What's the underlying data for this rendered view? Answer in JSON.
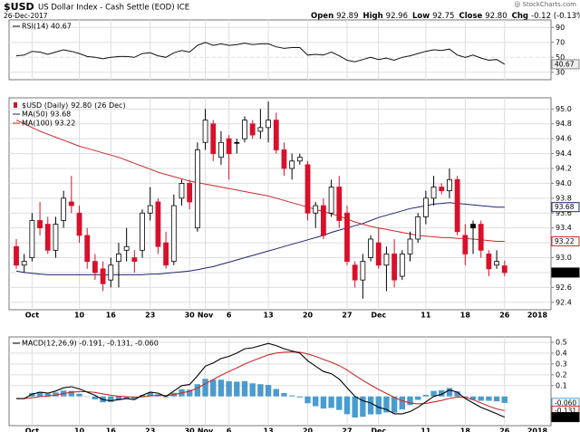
{
  "header": {
    "symbol": "$USD",
    "name": "US Dollar Index - Cash Settle (EOD) ICE",
    "date": "26-Dec-2017",
    "quote": [
      {
        "label": "Open",
        "value": "92.89"
      },
      {
        "label": "High",
        "value": "92.96"
      },
      {
        "label": "Low",
        "value": "92.75"
      },
      {
        "label": "Close",
        "value": "92.80"
      },
      {
        "label": "Chg",
        "value": "-0.12 (-0.13%)"
      }
    ],
    "credit": "@ StockCharts.com"
  },
  "chart_data": [
    {
      "type": "line",
      "ylim": [
        20,
        100
      ],
      "yticks": [
        30,
        50,
        70,
        90
      ],
      "grid": true,
      "series": [
        {
          "name": "RSI(14) 40.67",
          "color": "#111111",
          "values": [
            52,
            53,
            58,
            57,
            54,
            57,
            60,
            58,
            55,
            51,
            50,
            48,
            50,
            51,
            51,
            50,
            55,
            56,
            52,
            50,
            56,
            59,
            57,
            66,
            70,
            66,
            68,
            66,
            67,
            69,
            67,
            68,
            68,
            64,
            62,
            63,
            63,
            53,
            54,
            53,
            57,
            52,
            46,
            44,
            47,
            50,
            47,
            49,
            46,
            50,
            52,
            55,
            58,
            60,
            59,
            61,
            53,
            50,
            53,
            49,
            46,
            47,
            40.67
          ]
        }
      ]
    },
    {
      "type": "candlestick",
      "title": "$USD (Daily)",
      "close_label": "92.80",
      "last_date": "(26 Dec)",
      "categories": [
        null,
        null,
        "Oct",
        null,
        null,
        null,
        null,
        null,
        "10",
        null,
        null,
        null,
        "16",
        null,
        null,
        null,
        null,
        "23",
        null,
        null,
        null,
        null,
        "30",
        null,
        "Nov",
        null,
        null,
        "6",
        null,
        null,
        null,
        null,
        "13",
        null,
        null,
        null,
        null,
        "20",
        null,
        null,
        null,
        null,
        "27",
        null,
        null,
        null,
        "Dec",
        null,
        null,
        null,
        null,
        null,
        "11",
        null,
        null,
        null,
        null,
        "18",
        null,
        null,
        null,
        null,
        "26"
      ],
      "x_end_label": "2018",
      "open": [
        93.15,
        92.9,
        93.0,
        93.5,
        93.45,
        93.1,
        93.5,
        93.75,
        93.6,
        93.3,
        92.95,
        92.85,
        92.7,
        92.95,
        93.1,
        93.0,
        93.1,
        93.6,
        93.75,
        93.2,
        92.95,
        93.8,
        94.0,
        93.4,
        94.55,
        94.8,
        94.35,
        94.6,
        94.55,
        94.6,
        94.8,
        94.7,
        94.75,
        94.85,
        94.45,
        94.2,
        94.3,
        94.25,
        93.6,
        93.7,
        93.6,
        93.95,
        93.6,
        92.9,
        92.7,
        93.0,
        93.2,
        92.9,
        93.05,
        92.75,
        93.05,
        93.25,
        93.55,
        93.8,
        93.95,
        93.9,
        94.05,
        93.3,
        93.45,
        93.45,
        93.05,
        92.9,
        92.89
      ],
      "high": [
        93.25,
        93.05,
        93.6,
        93.75,
        93.55,
        93.55,
        93.9,
        94.1,
        93.7,
        93.4,
        93.05,
        92.95,
        93.0,
        93.2,
        93.4,
        93.1,
        93.65,
        93.95,
        93.8,
        93.35,
        93.85,
        94.05,
        94.05,
        94.55,
        95.0,
        94.85,
        94.7,
        94.65,
        94.6,
        94.9,
        94.85,
        95.0,
        95.1,
        94.95,
        94.55,
        94.4,
        94.4,
        94.3,
        93.75,
        93.8,
        94.05,
        94.1,
        93.7,
        92.95,
        93.05,
        93.3,
        93.4,
        93.15,
        93.25,
        93.1,
        93.35,
        93.6,
        93.9,
        94.1,
        94.0,
        94.2,
        94.1,
        93.45,
        93.5,
        93.5,
        93.1,
        93.1,
        92.96
      ],
      "low": [
        92.85,
        92.8,
        92.95,
        93.3,
        93.05,
        93.0,
        93.4,
        93.6,
        93.2,
        92.85,
        92.7,
        92.55,
        92.6,
        92.6,
        92.95,
        92.8,
        93.0,
        93.5,
        93.05,
        92.85,
        92.9,
        93.7,
        93.65,
        93.35,
        94.45,
        94.3,
        94.25,
        94.05,
        94.4,
        94.55,
        94.6,
        94.6,
        94.55,
        94.4,
        94.1,
        94.05,
        94.25,
        93.5,
        93.4,
        93.25,
        93.55,
        93.4,
        92.9,
        92.6,
        92.45,
        92.95,
        92.85,
        92.55,
        92.6,
        92.7,
        92.95,
        93.2,
        93.45,
        93.7,
        93.85,
        93.8,
        93.3,
        92.9,
        93.05,
        93.0,
        92.75,
        92.85,
        92.75
      ],
      "close": [
        92.9,
        92.95,
        93.5,
        93.4,
        93.1,
        93.45,
        93.8,
        93.7,
        93.3,
        92.95,
        92.8,
        92.65,
        92.9,
        93.05,
        93.15,
        92.95,
        93.6,
        93.7,
        93.15,
        92.9,
        93.7,
        94.0,
        93.75,
        94.45,
        94.85,
        94.4,
        94.55,
        94.4,
        94.55,
        94.85,
        94.65,
        94.75,
        94.85,
        94.45,
        94.2,
        94.3,
        94.35,
        93.6,
        93.7,
        93.3,
        93.95,
        93.5,
        92.95,
        92.7,
        92.95,
        93.25,
        92.9,
        93.05,
        92.7,
        93.05,
        93.25,
        93.55,
        93.8,
        93.95,
        93.9,
        94.05,
        93.35,
        93.05,
        93.4,
        93.1,
        92.85,
        92.95,
        92.8
      ],
      "ylim": [
        92.3,
        95.15
      ],
      "yticks": [
        92.4,
        92.6,
        92.8,
        {
          "value": 93,
          "label": "93.0"
        },
        93.2,
        93.4,
        93.6,
        93.8,
        {
          "value": 94,
          "label": "94.0"
        },
        94.2,
        94.4,
        94.6,
        94.8,
        {
          "value": 95,
          "label": "95.0"
        }
      ],
      "grid": true,
      "series": [
        {
          "name": "MA(50) 93.68",
          "color": "#22226e",
          "values": [
            92.82,
            92.8,
            92.79,
            92.78,
            92.77,
            92.77,
            92.77,
            92.77,
            92.77,
            92.77,
            92.77,
            92.77,
            92.77,
            92.77,
            92.77,
            92.77,
            92.77,
            92.78,
            92.78,
            92.79,
            92.8,
            92.81,
            92.82,
            92.84,
            92.86,
            92.88,
            92.91,
            92.94,
            92.97,
            93.0,
            93.03,
            93.06,
            93.09,
            93.12,
            93.15,
            93.18,
            93.21,
            93.24,
            93.27,
            93.3,
            93.34,
            93.37,
            93.4,
            93.43,
            93.46,
            93.5,
            93.54,
            93.57,
            93.6,
            93.63,
            93.66,
            93.68,
            93.7,
            93.72,
            93.73,
            93.74,
            93.73,
            93.72,
            93.71,
            93.7,
            93.69,
            93.68,
            93.68
          ]
        },
        {
          "name": "MA(100) 93.22",
          "color": "#cc2a2a",
          "values": [
            94.85,
            94.8,
            94.75,
            94.7,
            94.66,
            94.62,
            94.58,
            94.54,
            94.5,
            94.47,
            94.44,
            94.41,
            94.38,
            94.35,
            94.31,
            94.27,
            94.23,
            94.19,
            94.15,
            94.12,
            94.09,
            94.06,
            94.03,
            94.01,
            93.99,
            93.97,
            93.95,
            93.93,
            93.91,
            93.89,
            93.87,
            93.85,
            93.83,
            93.8,
            93.77,
            93.74,
            93.71,
            93.68,
            93.65,
            93.62,
            93.59,
            93.56,
            93.52,
            93.48,
            93.45,
            93.42,
            93.4,
            93.38,
            93.36,
            93.34,
            93.32,
            93.3,
            93.29,
            93.28,
            93.27,
            93.27,
            93.26,
            93.26,
            93.25,
            93.24,
            93.23,
            93.22,
            93.22
          ]
        }
      ]
    },
    {
      "type": "macd",
      "title": "MACD(12,26,9) -0.191, -0.131, -0.060",
      "ylim": [
        -0.27,
        0.55
      ],
      "yticks": [
        0.1,
        0.2,
        0.3,
        0.4,
        0.5
      ],
      "grid": true,
      "series": [
        {
          "name": "Histogram",
          "color": "#4a9ccf",
          "last_label": "-0.060",
          "values": [
            0,
            0,
            0.032,
            0.042,
            0.026,
            0.037,
            0.054,
            0.051,
            0.025,
            -0.004,
            -0.027,
            -0.054,
            -0.051,
            -0.033,
            -0.018,
            -0.022,
            0.014,
            0.035,
            0.02,
            -0.008,
            0.034,
            0.067,
            0.062,
            0.113,
            0.163,
            0.154,
            0.155,
            0.14,
            0.136,
            0.141,
            0.121,
            0.113,
            0.106,
            0.069,
            0.031,
            0.009,
            -0.009,
            -0.063,
            -0.09,
            -0.112,
            -0.106,
            -0.125,
            -0.164,
            -0.195,
            -0.188,
            -0.166,
            -0.165,
            -0.148,
            -0.15,
            -0.12,
            -0.08,
            -0.032,
            0.014,
            0.051,
            0.057,
            0.078,
            0.046,
            -0.011,
            -0.03,
            -0.04,
            -0.04,
            -0.045,
            -0.06
          ]
        },
        {
          "name": "Signal",
          "color": "#cc2a2a",
          "last_label": "-0.131",
          "values": [
            -0.02,
            -0.02,
            -0.012,
            -0.002,
            0.004,
            0.013,
            0.026,
            0.039,
            0.045,
            0.044,
            0.037,
            0.024,
            0.011,
            0.003,
            -0.002,
            -0.008,
            -0.004,
            0.005,
            0.01,
            0.008,
            0.016,
            0.033,
            0.048,
            0.077,
            0.117,
            0.156,
            0.195,
            0.23,
            0.264,
            0.299,
            0.329,
            0.357,
            0.384,
            0.401,
            0.409,
            0.411,
            0.409,
            0.393,
            0.37,
            0.342,
            0.316,
            0.285,
            0.244,
            0.195,
            0.148,
            0.106,
            0.065,
            0.028,
            -0.01,
            -0.04,
            -0.06,
            -0.068,
            -0.064,
            -0.051,
            -0.037,
            -0.018,
            -0.006,
            -0.009,
            -0.03,
            -0.06,
            -0.09,
            -0.115,
            -0.131
          ]
        },
        {
          "name": "MACD",
          "color": "#000000",
          "last_label": "-0.191",
          "values": [
            -0.02,
            -0.02,
            0.02,
            0.04,
            0.03,
            0.05,
            0.08,
            0.09,
            0.07,
            0.04,
            0.01,
            -0.03,
            -0.04,
            -0.03,
            -0.02,
            -0.03,
            0.01,
            0.04,
            0.03,
            0,
            0.05,
            0.1,
            0.11,
            0.19,
            0.28,
            0.31,
            0.35,
            0.37,
            0.4,
            0.44,
            0.45,
            0.47,
            0.49,
            0.47,
            0.44,
            0.42,
            0.4,
            0.33,
            0.28,
            0.23,
            0.21,
            0.16,
            0.08,
            0,
            -0.04,
            -0.06,
            -0.1,
            -0.12,
            -0.16,
            -0.16,
            -0.14,
            -0.1,
            -0.05,
            0,
            0.02,
            0.06,
            0.04,
            -0.02,
            -0.06,
            -0.1,
            -0.13,
            -0.16,
            -0.191
          ]
        }
      ]
    }
  ]
}
